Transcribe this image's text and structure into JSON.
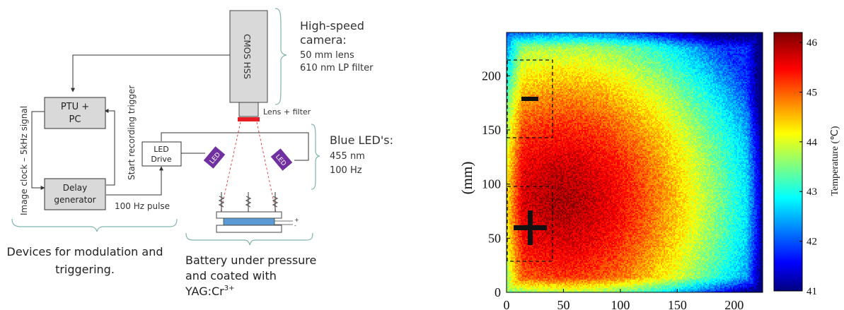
{
  "schematic": {
    "camera": {
      "box_label": "CMOS HSS",
      "title_line1": "High-speed",
      "title_line2": "camera:",
      "spec_line1": "50 mm lens",
      "spec_line2": "610 nm LP filter",
      "lens_label": "Lens + filter"
    },
    "ptu_line1": "PTU +",
    "ptu_line2": "PC",
    "delay_line1": "Delay",
    "delay_line2": "generator",
    "led_drive_line1": "LED",
    "led_drive_line2": "Drive",
    "led_chip_label": "LED",
    "image_clock_label": "Image clock – 5kHz signal",
    "start_trigger_label": "Start recording trigger",
    "pulse_label": "100 Hz pulse",
    "blue_led": {
      "title": "Blue LED's:",
      "spec_line1": "455 nm",
      "spec_line2": "100 Hz"
    },
    "devices_caption_line1": "Devices for modulation and",
    "devices_caption_line2": "triggering.",
    "battery_caption_line1": "Battery under pressure",
    "battery_caption_line2": "and coated with",
    "battery_caption_line3": "YAG:Cr",
    "battery_caption_sup": "3+",
    "terminal_plus": "+",
    "terminal_minus": "-",
    "colors": {
      "box_fill": "#d9d9d9",
      "led_purple": "#7030a0",
      "filter_red": "#e81c24",
      "battery_blue": "#5b9bd5",
      "bracket_teal": "#7fb3ad"
    }
  },
  "heatmap": {
    "ylabel": "(mm)",
    "colorbar_label": "Temperature (℃)",
    "x_ticks": [
      "0",
      "50",
      "100",
      "150",
      "200"
    ],
    "y_ticks": [
      "0",
      "50",
      "100",
      "150",
      "200"
    ],
    "colorbar_ticks": [
      "41",
      "42",
      "43",
      "44",
      "45",
      "46"
    ],
    "minus_label": "−",
    "plus_label": "+",
    "colormap": "jet"
  },
  "chart_data": {
    "type": "heatmap",
    "xlabel": "",
    "ylabel": "(mm)",
    "xlim": [
      0,
      225
    ],
    "ylim": [
      0,
      240
    ],
    "x_ticks": [
      0,
      50,
      100,
      150,
      200
    ],
    "y_ticks": [
      0,
      50,
      100,
      150,
      200
    ],
    "colorbar": {
      "label": "Temperature (℃)",
      "range": [
        41,
        46.2
      ],
      "ticks": [
        41,
        42,
        43,
        44,
        45,
        46
      ],
      "colormap": "jet"
    },
    "hotspot": {
      "x": 50,
      "y": 85,
      "peak_value": 46
    },
    "edge_value": 42.5,
    "annotations": [
      {
        "text": "−",
        "region_x": [
          0,
          40
        ],
        "region_y": [
          143,
          213
        ]
      },
      {
        "text": "+",
        "region_x": [
          0,
          40
        ],
        "region_y": [
          30,
          98
        ]
      }
    ]
  }
}
